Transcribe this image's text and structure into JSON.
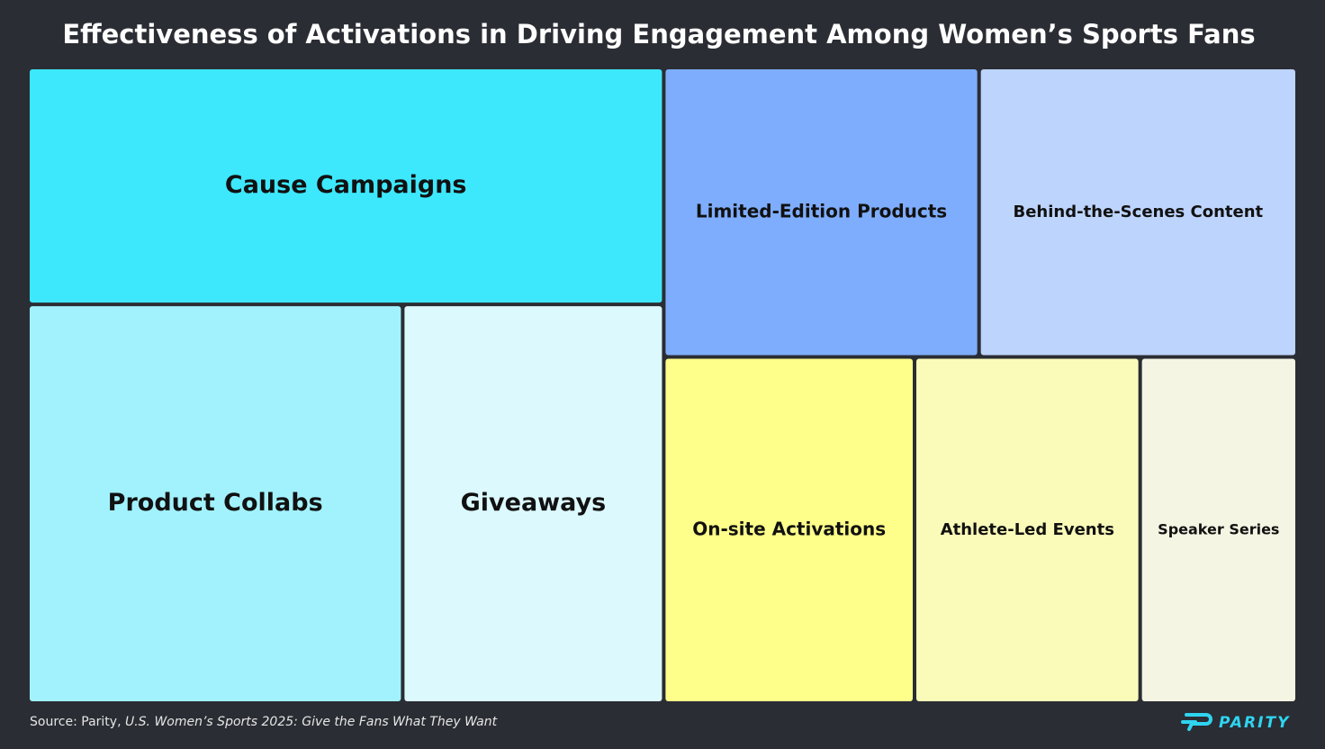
{
  "chart_data": {
    "type": "treemap",
    "title": "Effectiveness of Activations in Driving Engagement Among Women’s Sports Fans",
    "categories": [
      "Cause Campaigns",
      "Product Collabs",
      "Giveaways",
      "Limited-Edition Products",
      "Behind-the-Scenes Content",
      "On-site Activations",
      "Athlete-Led Events",
      "Speaker Series"
    ],
    "values": [
      18.6,
      18.6,
      12.9,
      11.3,
      11.4,
      10.8,
      9.7,
      6.7
    ],
    "colors": [
      "#3de8fd",
      "#a2f2fe",
      "#dcf9fd",
      "#7eadfd",
      "#bdd4fd",
      "#fefe8a",
      "#fbfbb9",
      "#f5f5e3"
    ],
    "source_prefix": "Source: Parity,",
    "source_title": "U.S. Women’s Sports 2025: Give the Fans What They Want",
    "logo": "PARITY"
  }
}
